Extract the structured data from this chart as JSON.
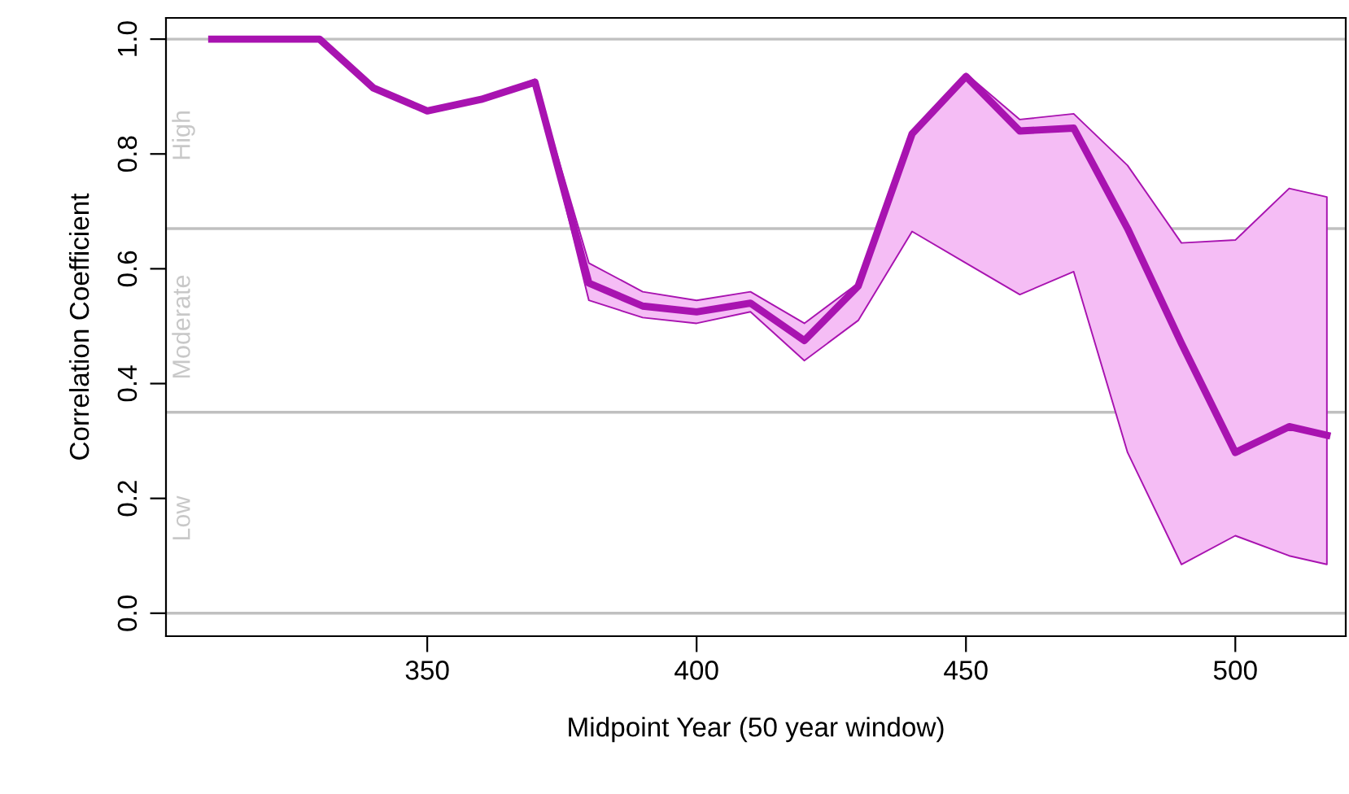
{
  "chart_data": {
    "type": "line",
    "xlabel": "Midpoint Year (50 year window)",
    "ylabel": "Correlation Coefficient",
    "xlim": [
      301.5,
      520.5
    ],
    "xticks": [
      350,
      400,
      450,
      500
    ],
    "ylim": [
      -0.04,
      1.037
    ],
    "yticks": [
      {
        "value": 0,
        "label": "0.0"
      },
      0.2,
      0.4,
      0.6,
      0.8,
      {
        "value": 1,
        "label": "1.0"
      }
    ],
    "grid": false,
    "line_style": "solid",
    "marker": "none",
    "x": [
      310,
      320,
      330,
      340,
      350,
      360,
      370,
      380,
      390,
      400,
      410,
      420,
      430,
      440,
      450,
      460,
      470,
      480,
      490,
      500,
      510,
      517
    ],
    "series": [
      {
        "color": "#a813b0",
        "values": [
          1.0,
          1.0,
          1.0,
          0.915,
          0.875,
          0.895,
          0.925,
          0.575,
          0.535,
          0.525,
          0.54,
          0.475,
          0.57,
          0.835,
          0.935,
          0.84,
          0.845,
          0.67,
          0.47,
          0.28,
          0.325,
          0.31
        ],
        "upper": [
          1.0,
          1.0,
          1.0,
          0.915,
          0.875,
          0.895,
          0.93,
          0.61,
          0.56,
          0.545,
          0.56,
          0.505,
          0.575,
          0.835,
          0.94,
          0.86,
          0.87,
          0.78,
          0.645,
          0.65,
          0.74,
          0.725
        ],
        "lower": [
          1.0,
          1.0,
          1.0,
          0.915,
          0.875,
          0.895,
          0.925,
          0.545,
          0.515,
          0.505,
          0.525,
          0.44,
          0.51,
          0.665,
          0.61,
          0.555,
          0.595,
          0.28,
          0.085,
          0.135,
          0.1,
          0.085
        ]
      }
    ],
    "ref_lines": [
      {
        "axis": "y",
        "value": 1.0,
        "color": "#c0c0c0"
      },
      {
        "axis": "y",
        "value": 0.67,
        "color": "#c0c0c0"
      },
      {
        "axis": "y",
        "value": 0.35,
        "color": "#c0c0c0"
      },
      {
        "axis": "y",
        "value": 0.0,
        "color": "#c0c0c0"
      }
    ],
    "annotations": [
      "High",
      "Moderate",
      "Low"
    ]
  }
}
